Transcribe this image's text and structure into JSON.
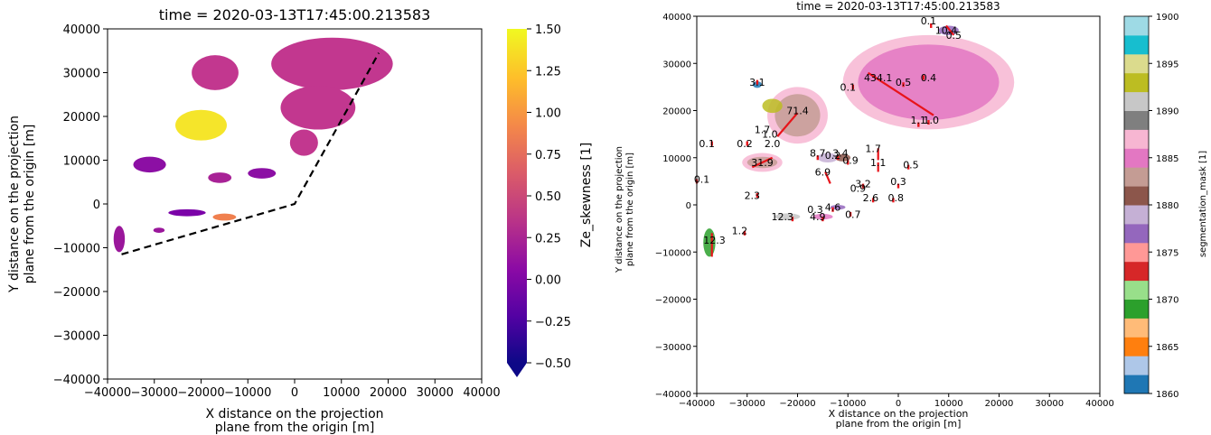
{
  "chart_data": [
    {
      "type": "heatmap",
      "title": "time = 2020-03-13T17:45:00.213583",
      "xlabel": [
        "X distance on the projection",
        "plane from the origin [m]"
      ],
      "ylabel": [
        "Y distance on the projection",
        "plane from the origin [m]"
      ],
      "xlim": [
        -40000,
        40000
      ],
      "ylim": [
        -40000,
        40000
      ],
      "x_ticks": [
        -40000,
        -30000,
        -20000,
        -10000,
        0,
        10000,
        20000,
        30000,
        40000
      ],
      "y_ticks": [
        -40000,
        -30000,
        -20000,
        -10000,
        0,
        10000,
        20000,
        30000,
        40000
      ],
      "grid": false,
      "colorbar": {
        "label": "Ze_skewness [1]",
        "colormap": "plasma",
        "range": [
          -0.5,
          1.5
        ],
        "ticks": [
          -0.5,
          -0.25,
          0.0,
          0.25,
          0.5,
          0.75,
          1.0,
          1.25,
          1.5
        ],
        "extend": "min"
      },
      "boundary_line": {
        "style": "dashed",
        "color": "#000000",
        "points": [
          [
            -37000,
            -11500
          ],
          [
            0,
            0
          ],
          [
            18000,
            34500
          ]
        ]
      },
      "regions": [
        {
          "value": 0.35,
          "color": "#c2378f",
          "center": [
            8000,
            32000
          ],
          "rx": 13000,
          "ry": 6000
        },
        {
          "value": 0.35,
          "color": "#c2378f",
          "center": [
            -17000,
            30000
          ],
          "rx": 5000,
          "ry": 4000
        },
        {
          "value": 0.35,
          "color": "#c2378f",
          "center": [
            5000,
            22000
          ],
          "rx": 8000,
          "ry": 5000
        },
        {
          "value": 0.35,
          "color": "#c2378f",
          "center": [
            2000,
            14000
          ],
          "rx": 3000,
          "ry": 3000
        },
        {
          "value": 1.4,
          "color": "#f5e52a",
          "center": [
            -20000,
            18000
          ],
          "rx": 5500,
          "ry": 3500
        },
        {
          "value": 0.1,
          "color": "#8c0fa4",
          "center": [
            -31000,
            9000
          ],
          "rx": 3500,
          "ry": 1800
        },
        {
          "value": 0.2,
          "color": "#a82296",
          "center": [
            -16000,
            6000
          ],
          "rx": 2500,
          "ry": 1200
        },
        {
          "value": 0.1,
          "color": "#8c0fa4",
          "center": [
            -7000,
            7000
          ],
          "rx": 3000,
          "ry": 1200
        },
        {
          "value": 0.05,
          "color": "#7b03a8",
          "center": [
            -23000,
            -2000
          ],
          "rx": 4000,
          "ry": 800
        },
        {
          "value": 0.8,
          "color": "#f0804f",
          "center": [
            -15000,
            -3000
          ],
          "rx": 2500,
          "ry": 800
        },
        {
          "value": 0.2,
          "color": "#9a179b",
          "center": [
            -37500,
            -8000
          ],
          "rx": 1200,
          "ry": 3000
        },
        {
          "value": 0.2,
          "color": "#9a179b",
          "center": [
            -29000,
            -6000
          ],
          "rx": 1200,
          "ry": 600
        }
      ]
    },
    {
      "type": "scatter",
      "title": "time = 2020-03-13T17:45:00.213583",
      "xlabel": [
        "X distance on the projection",
        "plane from the origin [m]"
      ],
      "ylabel": [
        "Y distance on the projection",
        "plane from the origin [m]"
      ],
      "xlim": [
        -40000,
        40000
      ],
      "ylim": [
        -40000,
        40000
      ],
      "x_ticks": [
        -40000,
        -30000,
        -20000,
        -10000,
        0,
        10000,
        20000,
        30000,
        40000
      ],
      "y_ticks": [
        -40000,
        -30000,
        -20000,
        -10000,
        0,
        10000,
        20000,
        30000,
        40000
      ],
      "grid": false,
      "colorbar": {
        "label": "segmentation_mask [1]",
        "colormap": "tab20",
        "range": [
          1860,
          1900
        ],
        "ticks": [
          1860,
          1865,
          1870,
          1875,
          1880,
          1885,
          1890,
          1895,
          1900
        ],
        "colors": [
          "#1f77b4",
          "#aec7e8",
          "#ff7f0e",
          "#ffbb78",
          "#2ca02c",
          "#98df8a",
          "#d62728",
          "#ff9896",
          "#9467bd",
          "#c5b0d5",
          "#8c564b",
          "#c49c94",
          "#e377c2",
          "#f7b6d2",
          "#7f7f7f",
          "#c7c7c7",
          "#bcbd22",
          "#dbdb8d",
          "#17becf",
          "#9edae5"
        ]
      },
      "ellipses": [
        {
          "center": [
            6000,
            26000
          ],
          "rx": 17000,
          "ry": 10000,
          "color": "#f7b6d2"
        },
        {
          "center": [
            -20000,
            19000
          ],
          "rx": 6000,
          "ry": 6000,
          "color": "#f7b6d2"
        },
        {
          "center": [
            -27000,
            9000
          ],
          "rx": 4000,
          "ry": 2000,
          "color": "#f7b6d2"
        }
      ],
      "labels": [
        {
          "text": "0.1",
          "x": 6000,
          "y": 39000
        },
        {
          "text": "10.4",
          "x": 9500,
          "y": 37000
        },
        {
          "text": "0.5",
          "x": 11000,
          "y": 36000
        },
        {
          "text": "3.1",
          "x": -28000,
          "y": 26000
        },
        {
          "text": "434.1",
          "x": -4000,
          "y": 27000
        },
        {
          "text": "0.1",
          "x": -10000,
          "y": 25000
        },
        {
          "text": "0.5",
          "x": 1000,
          "y": 26000
        },
        {
          "text": "0.4",
          "x": 6000,
          "y": 27000
        },
        {
          "text": "71.4",
          "x": -20000,
          "y": 20000
        },
        {
          "text": "1.1",
          "x": 4000,
          "y": 18000
        },
        {
          "text": "1.0",
          "x": 6500,
          "y": 18000
        },
        {
          "text": "1.7",
          "x": -27000,
          "y": 16000
        },
        {
          "text": "1.0",
          "x": -25500,
          "y": 15000
        },
        {
          "text": "0.1",
          "x": -38000,
          "y": 13000
        },
        {
          "text": "0.2",
          "x": -30500,
          "y": 13000
        },
        {
          "text": "2.0",
          "x": -25000,
          "y": 13000
        },
        {
          "text": "1.7",
          "x": -5000,
          "y": 12000
        },
        {
          "text": "8.7",
          "x": -16000,
          "y": 11000
        },
        {
          "text": "0.2",
          "x": -13000,
          "y": 10500
        },
        {
          "text": "3.4",
          "x": -11500,
          "y": 11000
        },
        {
          "text": "0.9",
          "x": -9500,
          "y": 9500
        },
        {
          "text": "31.9",
          "x": -27000,
          "y": 9000
        },
        {
          "text": "1.1",
          "x": -4000,
          "y": 9000
        },
        {
          "text": "0.5",
          "x": 2500,
          "y": 8500
        },
        {
          "text": "6.9",
          "x": -15000,
          "y": 7000
        },
        {
          "text": "0.1",
          "x": -39000,
          "y": 5500
        },
        {
          "text": "3.2",
          "x": -7000,
          "y": 4500
        },
        {
          "text": "0.3",
          "x": 0,
          "y": 5000
        },
        {
          "text": "0.9",
          "x": -8000,
          "y": 3500
        },
        {
          "text": "2.3",
          "x": -29000,
          "y": 2000
        },
        {
          "text": "2.6",
          "x": -5500,
          "y": 1500
        },
        {
          "text": "0.8",
          "x": -500,
          "y": 1500
        },
        {
          "text": "0.3",
          "x": -16500,
          "y": -1000
        },
        {
          "text": "4.6",
          "x": -13000,
          "y": -500
        },
        {
          "text": "0.7",
          "x": -9000,
          "y": -2000
        },
        {
          "text": "12.3",
          "x": -23000,
          "y": -2500
        },
        {
          "text": "4.9",
          "x": -16000,
          "y": -2500
        },
        {
          "text": "1.2",
          "x": -31500,
          "y": -5500
        },
        {
          "text": "12.3",
          "x": -36500,
          "y": -7500
        }
      ],
      "tracks": [
        {
          "from": [
            -6000,
            28000
          ],
          "to": [
            7000,
            19000
          ]
        },
        {
          "from": [
            -20000,
            19500
          ],
          "to": [
            -24000,
            14500
          ]
        },
        {
          "from": [
            -29000,
            8000
          ],
          "to": [
            -25000,
            10000
          ]
        },
        {
          "from": [
            -14500,
            7000
          ],
          "to": [
            -13500,
            4500
          ]
        },
        {
          "from": [
            -4000,
            12000
          ],
          "to": [
            -4000,
            9500
          ]
        },
        {
          "from": [
            -4000,
            9000
          ],
          "to": [
            -4000,
            7000
          ]
        },
        {
          "from": [
            -37000,
            -6000
          ],
          "to": [
            -37000,
            -11000
          ]
        },
        {
          "from": [
            9500,
            38000
          ],
          "to": [
            11000,
            36000
          ]
        }
      ],
      "points": [
        {
          "x": -37000,
          "y": 13000
        },
        {
          "x": -40000,
          "y": 5000
        },
        {
          "x": -30000,
          "y": 13000
        },
        {
          "x": -28000,
          "y": 26000
        },
        {
          "x": -28000,
          "y": 2000
        },
        {
          "x": -21000,
          "y": -3000
        },
        {
          "x": -30500,
          "y": -6000
        },
        {
          "x": -15000,
          "y": -3000
        },
        {
          "x": -13000,
          "y": -1000
        },
        {
          "x": -9500,
          "y": -2000
        },
        {
          "x": -5000,
          "y": 1000
        },
        {
          "x": -1000,
          "y": 1000
        },
        {
          "x": 0,
          "y": 4000
        },
        {
          "x": 2000,
          "y": 8000
        },
        {
          "x": -7000,
          "y": 4000
        },
        {
          "x": -10000,
          "y": 9000
        },
        {
          "x": -12000,
          "y": 10000
        },
        {
          "x": -16000,
          "y": 10000
        },
        {
          "x": 4000,
          "y": 17000
        },
        {
          "x": 6000,
          "y": 17500
        },
        {
          "x": 5000,
          "y": 27000
        },
        {
          "x": 6500,
          "y": 38000
        },
        {
          "x": -9000,
          "y": 25000
        },
        {
          "x": 1000,
          "y": 25500
        }
      ],
      "regions": [
        {
          "center": [
            6000,
            26000
          ],
          "rx": 14000,
          "ry": 8000,
          "color": "#e377c2"
        },
        {
          "center": [
            -20000,
            19000
          ],
          "rx": 4500,
          "ry": 4500,
          "color": "#c49c94"
        },
        {
          "center": [
            -25000,
            21000
          ],
          "rx": 2000,
          "ry": 1500,
          "color": "#bcbd22"
        },
        {
          "center": [
            -27000,
            9000
          ],
          "rx": 3000,
          "ry": 1200,
          "color": "#c49c94"
        },
        {
          "center": [
            -14000,
            10000
          ],
          "rx": 2000,
          "ry": 1000,
          "color": "#c5b0d5"
        },
        {
          "center": [
            -11000,
            10000
          ],
          "rx": 1500,
          "ry": 800,
          "color": "#8c564b"
        },
        {
          "center": [
            -22000,
            -2500
          ],
          "rx": 2500,
          "ry": 700,
          "color": "#c7c7c7"
        },
        {
          "center": [
            -15000,
            -2500
          ],
          "rx": 2000,
          "ry": 600,
          "color": "#e377c2"
        },
        {
          "center": [
            -12000,
            -500
          ],
          "rx": 1500,
          "ry": 500,
          "color": "#9467bd"
        },
        {
          "center": [
            -37500,
            -8000
          ],
          "rx": 1200,
          "ry": 3000,
          "color": "#2ca02c"
        },
        {
          "center": [
            -28000,
            25500
          ],
          "rx": 900,
          "ry": 700,
          "color": "#1f77b4"
        },
        {
          "center": [
            10000,
            37000
          ],
          "rx": 2000,
          "ry": 1000,
          "color": "#9467bd"
        }
      ]
    }
  ]
}
